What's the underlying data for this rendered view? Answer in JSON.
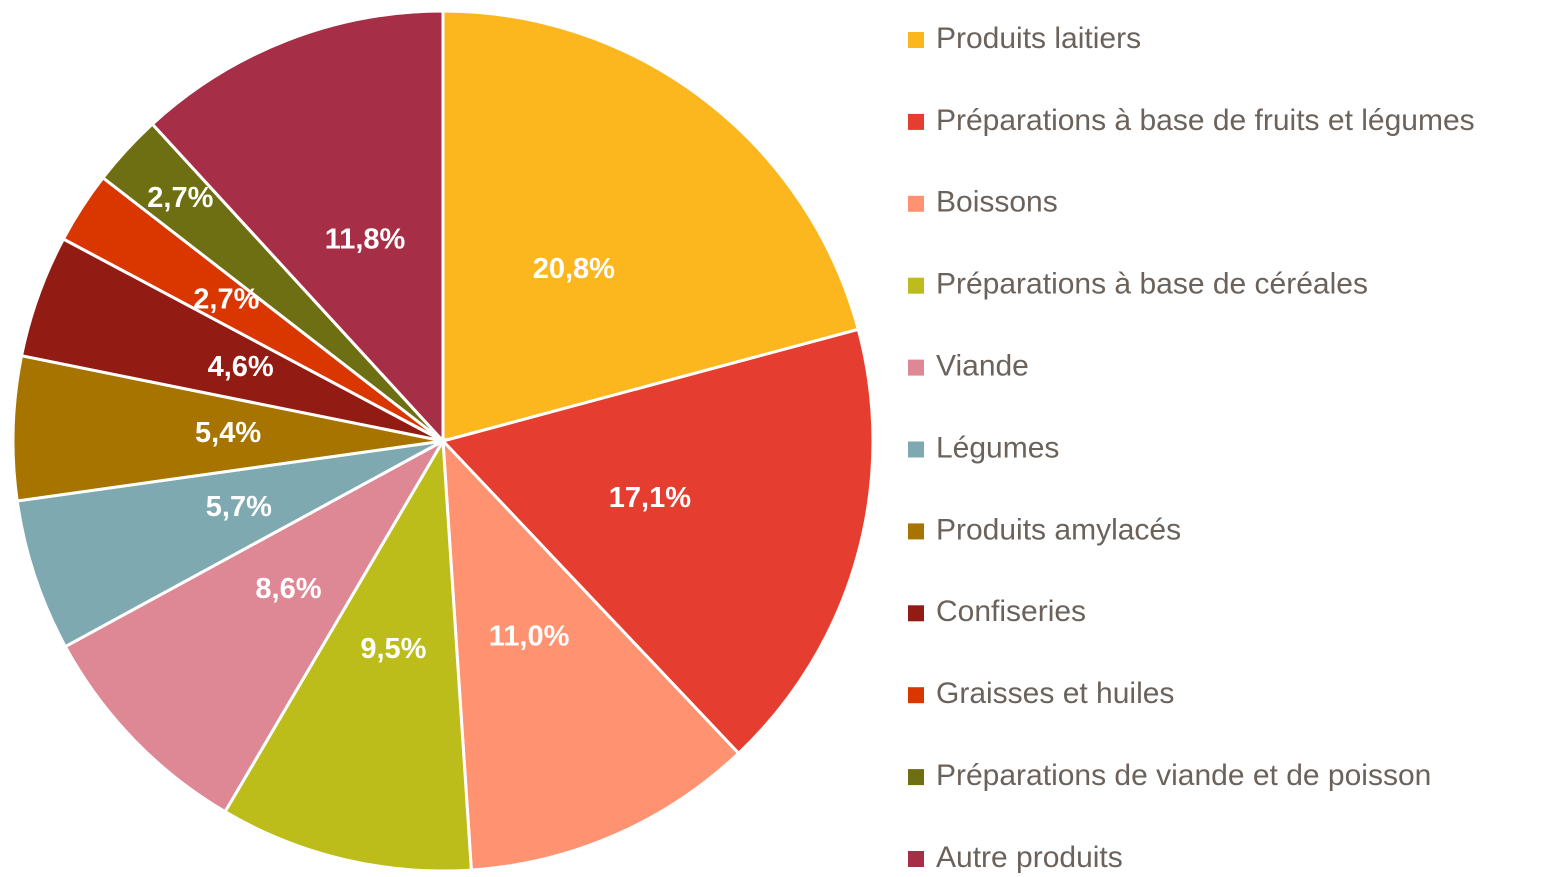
{
  "chart_data": {
    "type": "pie",
    "categories": [
      "Produits laitiers",
      "Préparations à base de fruits et légumes",
      "Boissons",
      "Préparations à base de céréales",
      "Viande",
      "Légumes",
      "Produits amylacés",
      "Confiseries",
      "Graisses et huiles",
      "Préparations de viande et de poisson",
      "Autre produits"
    ],
    "values": [
      20.8,
      17.1,
      11.0,
      9.5,
      8.6,
      5.7,
      5.4,
      4.6,
      2.7,
      2.7,
      11.8
    ],
    "value_labels": [
      "20,8%",
      "17,1%",
      "11,0%",
      "9,5%",
      "8,6%",
      "5,7%",
      "5,4%",
      "4,6%",
      "2,7%",
      "2,7%",
      "11,8%"
    ],
    "colors": [
      "#FDB71E",
      "#E53E30",
      "#FF9270",
      "#BCBC1A",
      "#DE8896",
      "#7FA9B0",
      "#A87400",
      "#921C13",
      "#D93600",
      "#6E6E12",
      "#A62E47"
    ],
    "legend": "right"
  }
}
